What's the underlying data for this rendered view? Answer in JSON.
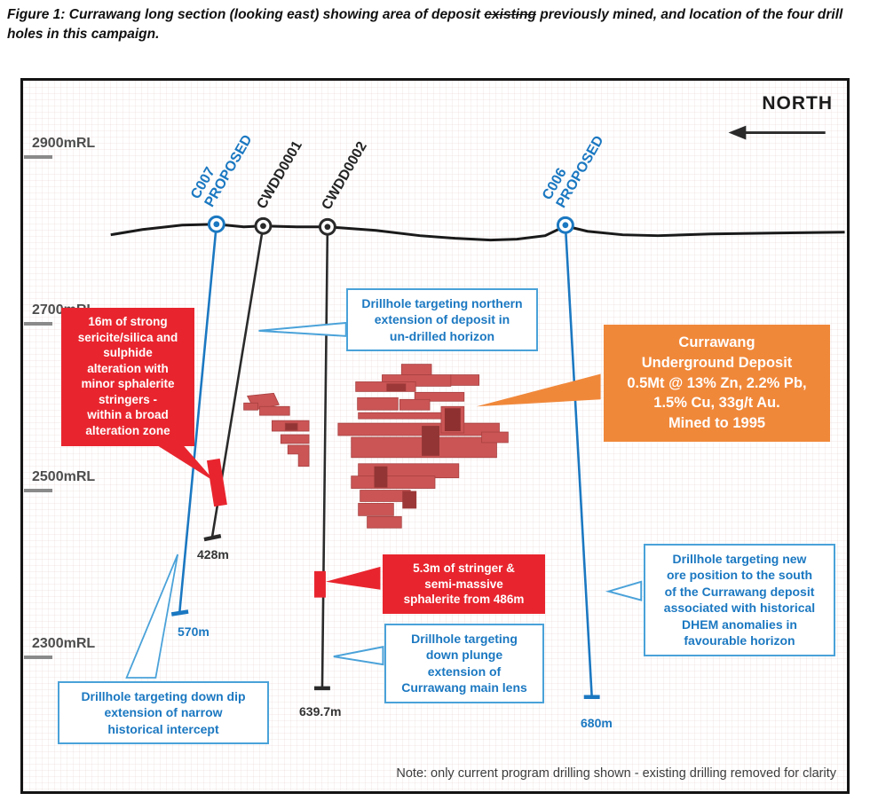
{
  "figure": {
    "caption_pre": "Figure 1: Currawang long section (looking east) showing area of deposit ",
    "caption_struck": "existing",
    "caption_post": " previously mined, and location of the four drill holes in this campaign.",
    "note": "Note: only current program drilling shown - existing drilling removed for clarity",
    "north_label": "NORTH"
  },
  "axis": {
    "ticks": [
      {
        "label": "2900mRL"
      },
      {
        "label": "2700mRL"
      },
      {
        "label": "2500mRL"
      },
      {
        "label": "2300mRL"
      }
    ]
  },
  "holes": [
    {
      "id": "C007",
      "line1": "C007",
      "line2": "PROPOSED",
      "status": "proposed",
      "depth_label": "570m",
      "color": "#1b78c1"
    },
    {
      "id": "CWDD0001",
      "line1": "CWDD0001",
      "line2": "",
      "status": "drilled",
      "depth_label": "428m",
      "color": "#242424"
    },
    {
      "id": "CWDD0002",
      "line1": "CWDD0002",
      "line2": "",
      "status": "drilled",
      "depth_label": "639.7m",
      "color": "#242424"
    },
    {
      "id": "C006",
      "line1": "C006",
      "line2": "PROPOSED",
      "status": "proposed",
      "depth_label": "680m",
      "color": "#1b78c1"
    }
  ],
  "callouts": {
    "alteration": {
      "lines": [
        "16m of strong",
        "sericite/silica and",
        "sulphide",
        "alteration with",
        "minor sphalerite",
        "stringers -",
        "within a broad",
        "alteration zone"
      ],
      "color": "#e8252e"
    },
    "northern": {
      "lines": [
        "Drillhole targeting northern",
        "extension of deposit in",
        "un-drilled horizon"
      ],
      "color": "#1b78c1"
    },
    "deposit": {
      "lines": [
        "Currawang",
        "Underground Deposit",
        "0.5Mt @ 13% Zn, 2.2% Pb,",
        "1.5% Cu, 33g/t Au.",
        "Mined to 1995"
      ],
      "color": "#f0883a"
    },
    "stringer": {
      "lines": [
        "5.3m of stringer &",
        "semi-massive",
        "sphalerite from 486m"
      ],
      "color": "#e8252e"
    },
    "down_plunge": {
      "lines": [
        "Drillhole targeting",
        "down plunge",
        "extension of",
        "Currawang main lens"
      ],
      "color": "#1b78c1"
    },
    "down_dip": {
      "lines": [
        "Drillhole targeting down dip",
        "extension of narrow",
        "historical intercept"
      ],
      "color": "#1b78c1"
    },
    "new_ore": {
      "lines": [
        "Drillhole targeting new",
        "ore position to the south",
        "of the Currawang deposit",
        "associated with historical",
        "DHEM  anomalies in",
        "favourable horizon"
      ],
      "color": "#1b78c1"
    }
  }
}
